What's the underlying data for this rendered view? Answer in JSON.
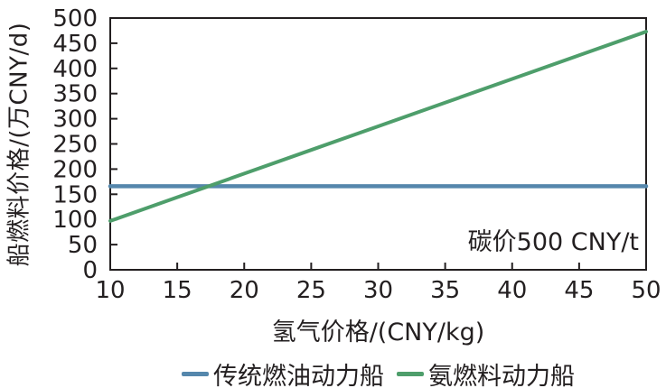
{
  "figure": {
    "background_color": "#ffffff",
    "annotation": "碳价500 CNY/t"
  },
  "colors": {
    "axis": "#231f20",
    "text": "#231f20",
    "traditional_fuel_line": "#5587ac",
    "ammonia_fuel_line": "#4e9e6b"
  },
  "chart_data": {
    "type": "line",
    "title": "",
    "xlabel": "氢气价格/(CNY/kg)",
    "ylabel": "船燃料价格/(万CNY/d)",
    "annotation": "碳价500 CNY/t",
    "xlim": [
      10,
      50
    ],
    "ylim": [
      0,
      500
    ],
    "x_ticks": [
      10,
      15,
      20,
      25,
      30,
      35,
      40,
      45,
      50
    ],
    "y_ticks": [
      0,
      50,
      100,
      150,
      200,
      250,
      300,
      350,
      400,
      450,
      500
    ],
    "grid": false,
    "legend_position": "bottom-center",
    "series": [
      {
        "name": "传统燃油动力船",
        "color": "#5587ac",
        "x": [
          10,
          15,
          20,
          25,
          30,
          35,
          40,
          45,
          50
        ],
        "values": [
          166,
          166,
          166,
          166,
          166,
          166,
          166,
          166,
          166
        ]
      },
      {
        "name": "氨燃料动力船",
        "color": "#4e9e6b",
        "x": [
          10,
          15,
          20,
          25,
          30,
          35,
          40,
          45,
          50
        ],
        "values": [
          97,
          144,
          191,
          238,
          285,
          332,
          379,
          426,
          473
        ]
      }
    ],
    "intersection_note": "lines cross near x=17.5, y=166"
  }
}
